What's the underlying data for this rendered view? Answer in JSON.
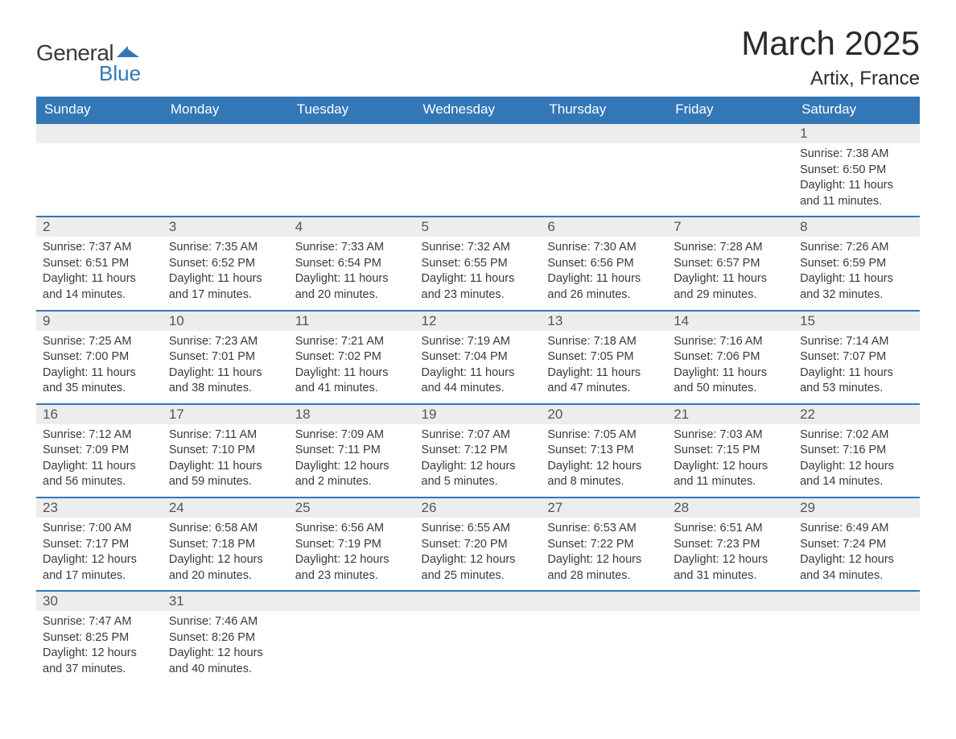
{
  "logo": {
    "text_general": "General",
    "text_blue": "Blue",
    "shape_color": "#3377b7"
  },
  "title": "March 2025",
  "location": "Artix, France",
  "colors": {
    "header_bg": "#3377b7",
    "header_text": "#ffffff",
    "daynum_bg": "#ededed",
    "daynum_text": "#555555",
    "body_text": "#3a3a3a",
    "border": "#3377b7"
  },
  "weekdays": [
    "Sunday",
    "Monday",
    "Tuesday",
    "Wednesday",
    "Thursday",
    "Friday",
    "Saturday"
  ],
  "days": [
    {
      "num": "",
      "empty": true
    },
    {
      "num": "",
      "empty": true
    },
    {
      "num": "",
      "empty": true
    },
    {
      "num": "",
      "empty": true
    },
    {
      "num": "",
      "empty": true
    },
    {
      "num": "",
      "empty": true
    },
    {
      "num": "1",
      "sunrise": "Sunrise: 7:38 AM",
      "sunset": "Sunset: 6:50 PM",
      "daylight": "Daylight: 11 hours and 11 minutes."
    },
    {
      "num": "2",
      "sunrise": "Sunrise: 7:37 AM",
      "sunset": "Sunset: 6:51 PM",
      "daylight": "Daylight: 11 hours and 14 minutes."
    },
    {
      "num": "3",
      "sunrise": "Sunrise: 7:35 AM",
      "sunset": "Sunset: 6:52 PM",
      "daylight": "Daylight: 11 hours and 17 minutes."
    },
    {
      "num": "4",
      "sunrise": "Sunrise: 7:33 AM",
      "sunset": "Sunset: 6:54 PM",
      "daylight": "Daylight: 11 hours and 20 minutes."
    },
    {
      "num": "5",
      "sunrise": "Sunrise: 7:32 AM",
      "sunset": "Sunset: 6:55 PM",
      "daylight": "Daylight: 11 hours and 23 minutes."
    },
    {
      "num": "6",
      "sunrise": "Sunrise: 7:30 AM",
      "sunset": "Sunset: 6:56 PM",
      "daylight": "Daylight: 11 hours and 26 minutes."
    },
    {
      "num": "7",
      "sunrise": "Sunrise: 7:28 AM",
      "sunset": "Sunset: 6:57 PM",
      "daylight": "Daylight: 11 hours and 29 minutes."
    },
    {
      "num": "8",
      "sunrise": "Sunrise: 7:26 AM",
      "sunset": "Sunset: 6:59 PM",
      "daylight": "Daylight: 11 hours and 32 minutes."
    },
    {
      "num": "9",
      "sunrise": "Sunrise: 7:25 AM",
      "sunset": "Sunset: 7:00 PM",
      "daylight": "Daylight: 11 hours and 35 minutes."
    },
    {
      "num": "10",
      "sunrise": "Sunrise: 7:23 AM",
      "sunset": "Sunset: 7:01 PM",
      "daylight": "Daylight: 11 hours and 38 minutes."
    },
    {
      "num": "11",
      "sunrise": "Sunrise: 7:21 AM",
      "sunset": "Sunset: 7:02 PM",
      "daylight": "Daylight: 11 hours and 41 minutes."
    },
    {
      "num": "12",
      "sunrise": "Sunrise: 7:19 AM",
      "sunset": "Sunset: 7:04 PM",
      "daylight": "Daylight: 11 hours and 44 minutes."
    },
    {
      "num": "13",
      "sunrise": "Sunrise: 7:18 AM",
      "sunset": "Sunset: 7:05 PM",
      "daylight": "Daylight: 11 hours and 47 minutes."
    },
    {
      "num": "14",
      "sunrise": "Sunrise: 7:16 AM",
      "sunset": "Sunset: 7:06 PM",
      "daylight": "Daylight: 11 hours and 50 minutes."
    },
    {
      "num": "15",
      "sunrise": "Sunrise: 7:14 AM",
      "sunset": "Sunset: 7:07 PM",
      "daylight": "Daylight: 11 hours and 53 minutes."
    },
    {
      "num": "16",
      "sunrise": "Sunrise: 7:12 AM",
      "sunset": "Sunset: 7:09 PM",
      "daylight": "Daylight: 11 hours and 56 minutes."
    },
    {
      "num": "17",
      "sunrise": "Sunrise: 7:11 AM",
      "sunset": "Sunset: 7:10 PM",
      "daylight": "Daylight: 11 hours and 59 minutes."
    },
    {
      "num": "18",
      "sunrise": "Sunrise: 7:09 AM",
      "sunset": "Sunset: 7:11 PM",
      "daylight": "Daylight: 12 hours and 2 minutes."
    },
    {
      "num": "19",
      "sunrise": "Sunrise: 7:07 AM",
      "sunset": "Sunset: 7:12 PM",
      "daylight": "Daylight: 12 hours and 5 minutes."
    },
    {
      "num": "20",
      "sunrise": "Sunrise: 7:05 AM",
      "sunset": "Sunset: 7:13 PM",
      "daylight": "Daylight: 12 hours and 8 minutes."
    },
    {
      "num": "21",
      "sunrise": "Sunrise: 7:03 AM",
      "sunset": "Sunset: 7:15 PM",
      "daylight": "Daylight: 12 hours and 11 minutes."
    },
    {
      "num": "22",
      "sunrise": "Sunrise: 7:02 AM",
      "sunset": "Sunset: 7:16 PM",
      "daylight": "Daylight: 12 hours and 14 minutes."
    },
    {
      "num": "23",
      "sunrise": "Sunrise: 7:00 AM",
      "sunset": "Sunset: 7:17 PM",
      "daylight": "Daylight: 12 hours and 17 minutes."
    },
    {
      "num": "24",
      "sunrise": "Sunrise: 6:58 AM",
      "sunset": "Sunset: 7:18 PM",
      "daylight": "Daylight: 12 hours and 20 minutes."
    },
    {
      "num": "25",
      "sunrise": "Sunrise: 6:56 AM",
      "sunset": "Sunset: 7:19 PM",
      "daylight": "Daylight: 12 hours and 23 minutes."
    },
    {
      "num": "26",
      "sunrise": "Sunrise: 6:55 AM",
      "sunset": "Sunset: 7:20 PM",
      "daylight": "Daylight: 12 hours and 25 minutes."
    },
    {
      "num": "27",
      "sunrise": "Sunrise: 6:53 AM",
      "sunset": "Sunset: 7:22 PM",
      "daylight": "Daylight: 12 hours and 28 minutes."
    },
    {
      "num": "28",
      "sunrise": "Sunrise: 6:51 AM",
      "sunset": "Sunset: 7:23 PM",
      "daylight": "Daylight: 12 hours and 31 minutes."
    },
    {
      "num": "29",
      "sunrise": "Sunrise: 6:49 AM",
      "sunset": "Sunset: 7:24 PM",
      "daylight": "Daylight: 12 hours and 34 minutes."
    },
    {
      "num": "30",
      "sunrise": "Sunrise: 7:47 AM",
      "sunset": "Sunset: 8:25 PM",
      "daylight": "Daylight: 12 hours and 37 minutes."
    },
    {
      "num": "31",
      "sunrise": "Sunrise: 7:46 AM",
      "sunset": "Sunset: 8:26 PM",
      "daylight": "Daylight: 12 hours and 40 minutes."
    },
    {
      "num": "",
      "empty": true,
      "noborder": true
    },
    {
      "num": "",
      "empty": true,
      "noborder": true
    },
    {
      "num": "",
      "empty": true,
      "noborder": true
    },
    {
      "num": "",
      "empty": true,
      "noborder": true
    },
    {
      "num": "",
      "empty": true,
      "noborder": true
    }
  ]
}
